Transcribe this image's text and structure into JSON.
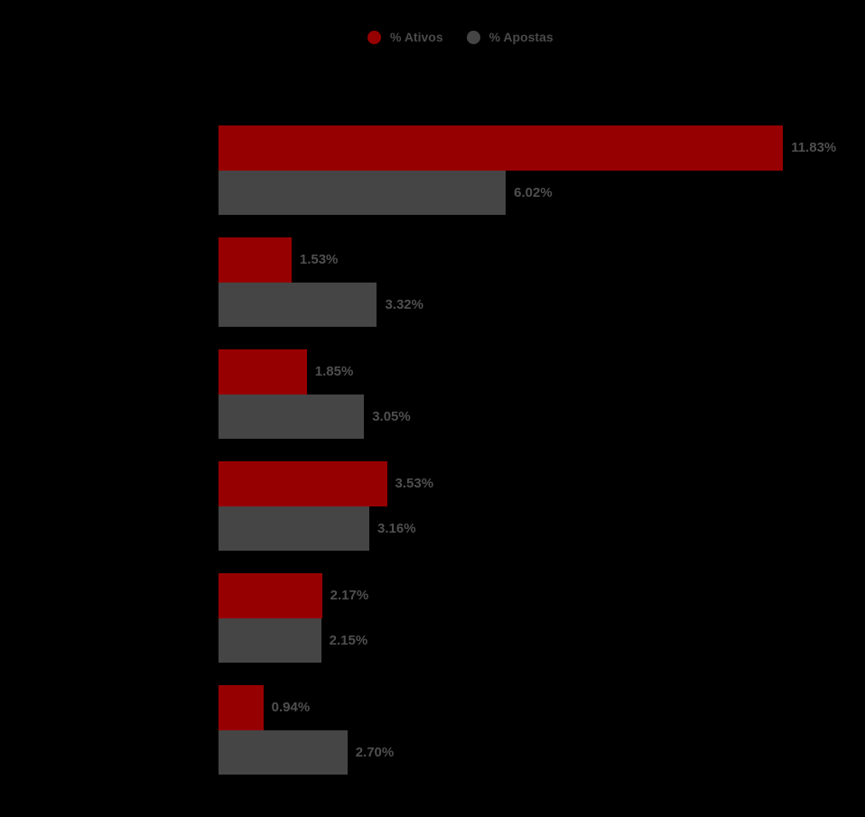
{
  "page": {
    "background": "#000000"
  },
  "legend": {
    "position": "top"
  },
  "chart_data": {
    "type": "bar",
    "orientation": "horizontal",
    "title": "",
    "xlabel": "",
    "ylabel": "",
    "axis_visible": false,
    "gridlines": false,
    "legend_position": "top",
    "xlim": [
      0,
      13.5
    ],
    "category_labels_visible": false,
    "series": [
      {
        "name": "% Ativos",
        "color": "#970000",
        "values": [
          11.83,
          1.53,
          1.85,
          3.53,
          2.17,
          0.94
        ],
        "labels": [
          "11.83%",
          "1.53%",
          "1.85%",
          "3.53%",
          "2.17%",
          "0.94%"
        ]
      },
      {
        "name": "% Apostas",
        "color": "#454545",
        "values": [
          6.02,
          3.32,
          3.05,
          3.16,
          2.15,
          2.7
        ],
        "labels": [
          "6.02%",
          "3.32%",
          "3.05%",
          "3.16%",
          "2.15%",
          "2.70%"
        ]
      }
    ]
  }
}
